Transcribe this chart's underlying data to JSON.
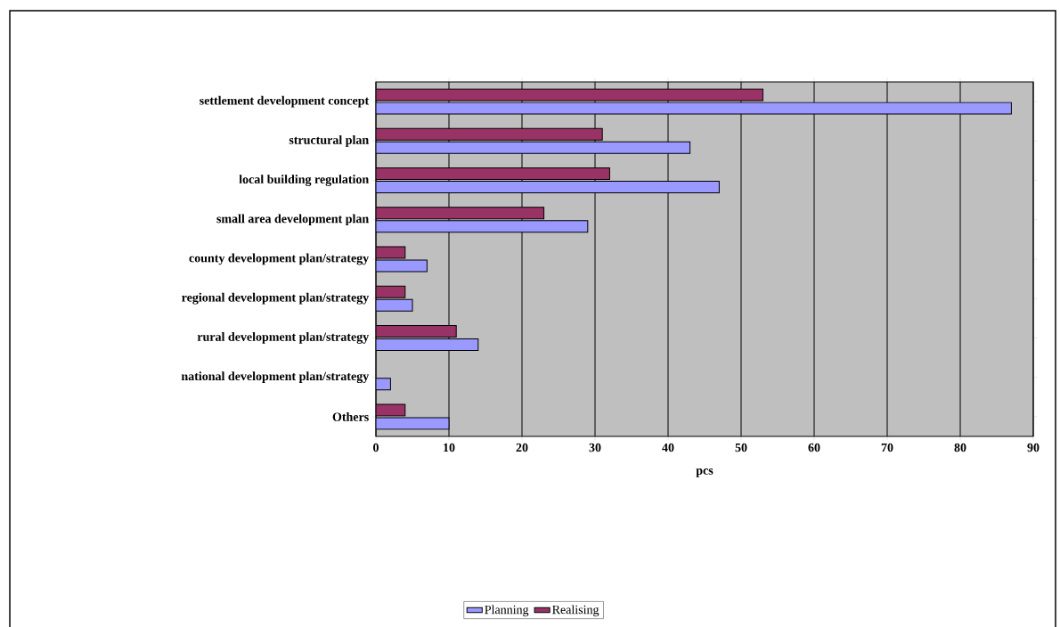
{
  "chart_data": {
    "type": "bar",
    "orientation": "horizontal",
    "categories": [
      "settlement development concept",
      "structural plan",
      "local building regulation",
      "small area development plan",
      "county development plan/strategy",
      "regional development plan/strategy",
      "rural development plan/strategy",
      "national development plan/strategy",
      "Others"
    ],
    "series": [
      {
        "name": "Planning",
        "color": "#9999ff",
        "values": [
          87,
          43,
          47,
          29,
          7,
          5,
          14,
          2,
          10
        ]
      },
      {
        "name": "Realising",
        "color": "#993366",
        "values": [
          53,
          31,
          32,
          23,
          4,
          4,
          11,
          0,
          4
        ]
      }
    ],
    "xlabel": "pcs",
    "xlim": [
      0,
      90
    ],
    "xticks": [
      0,
      10,
      20,
      30,
      40,
      50,
      60,
      70,
      80,
      90
    ],
    "grid": "x",
    "legend": "bottom"
  }
}
